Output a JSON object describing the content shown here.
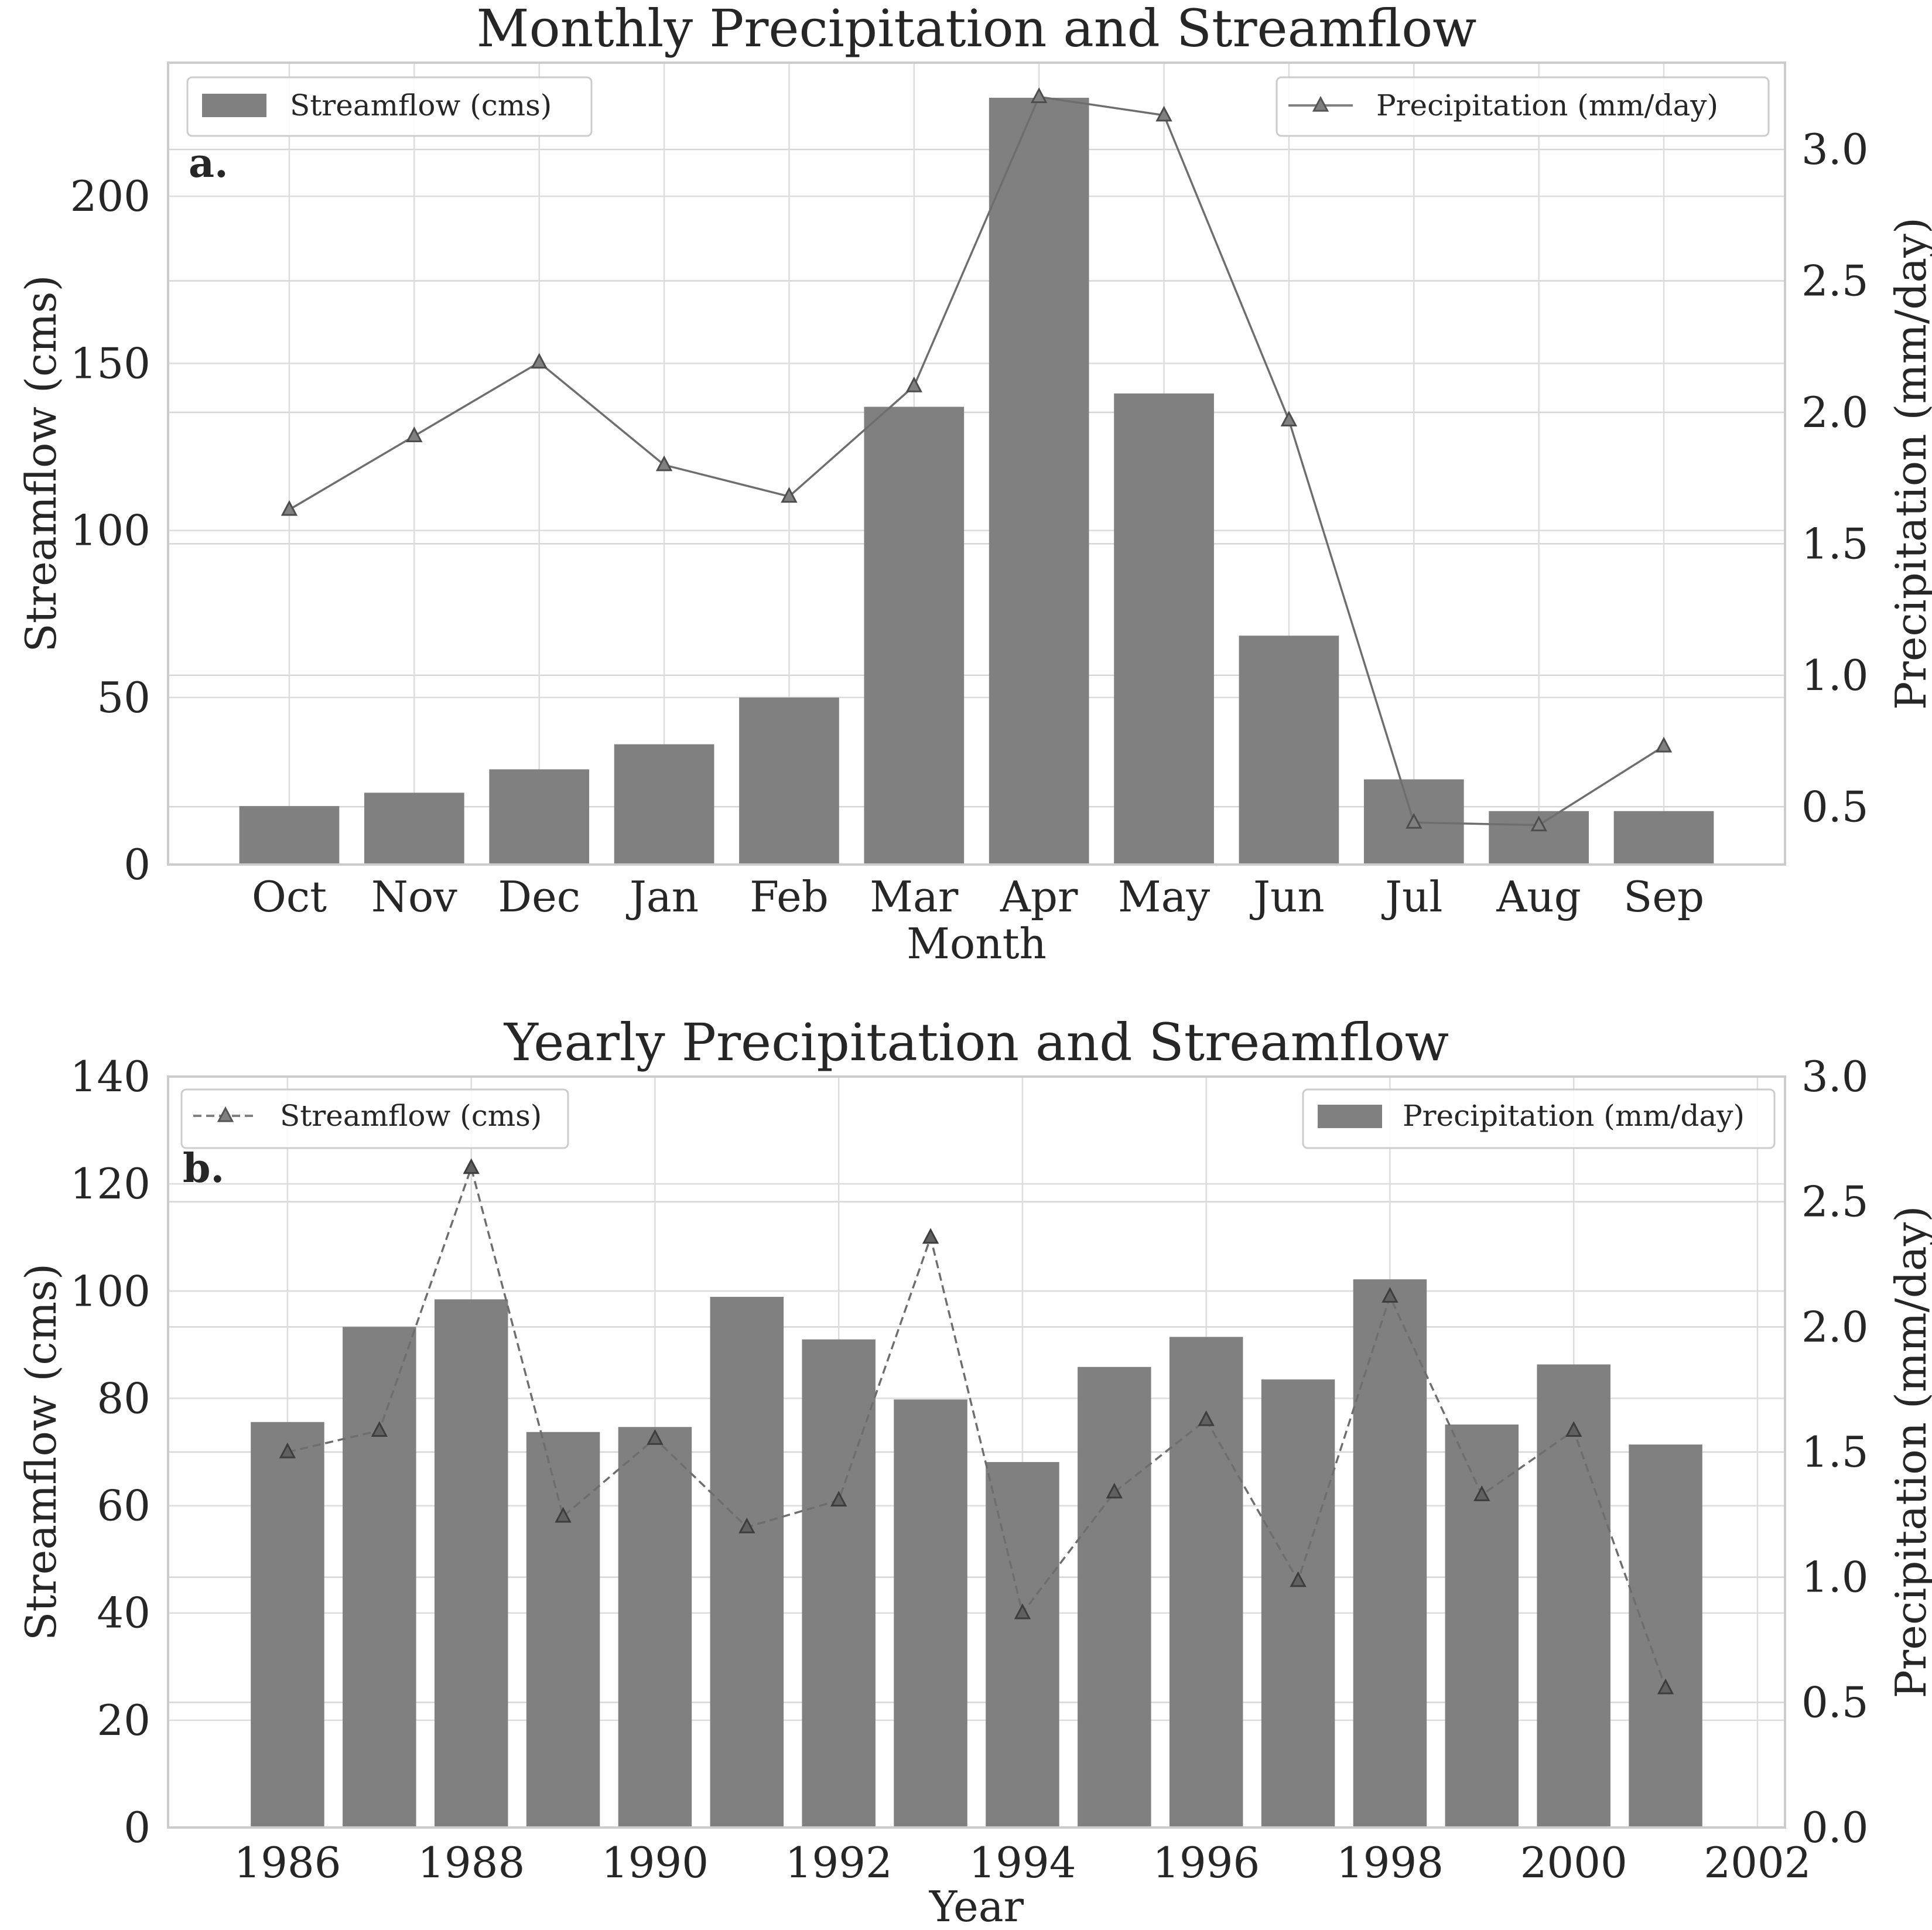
{
  "chart_data": [
    {
      "id": "a",
      "type": "bar",
      "panel_label": "a.",
      "title": "Monthly Precipitation and Streamflow",
      "xlabel": "Month",
      "ylabel": "Streamflow (cms)",
      "y2label": "Precipitation (mm/day)",
      "categories": [
        "Oct",
        "Nov",
        "Dec",
        "Jan",
        "Feb",
        "Mar",
        "Apr",
        "May",
        "Jun",
        "Jul",
        "Aug",
        "Sep"
      ],
      "ylim": [
        0,
        240
      ],
      "yticks": [
        0,
        50,
        100,
        150,
        200
      ],
      "y2lim": [
        0.28,
        3.33
      ],
      "y2ticks": [
        0.5,
        1.0,
        1.5,
        2.0,
        2.5,
        3.0
      ],
      "y2tick_decimals": 1,
      "series": [
        {
          "name": "Streamflow (cms)",
          "kind": "bar",
          "axis": "left",
          "color": "#808080",
          "values": [
            17.5,
            21.5,
            28.5,
            36,
            50,
            137,
            229.5,
            141,
            68.5,
            25.5,
            16,
            16
          ]
        },
        {
          "name": "Precipitation (mm/day)",
          "kind": "line",
          "axis": "right",
          "color": "#808080",
          "marker": "triangle",
          "dashed": false,
          "values": [
            1.63,
            1.91,
            2.19,
            1.8,
            1.68,
            2.1,
            3.2,
            3.13,
            1.97,
            0.44,
            0.43,
            0.73
          ]
        }
      ],
      "legend_left": [
        "Streamflow (cms)"
      ],
      "legend_right": [
        "Precipitation (mm/day)"
      ]
    },
    {
      "id": "b",
      "type": "bar",
      "panel_label": "b.",
      "title": "Yearly Precipitation and Streamflow",
      "xlabel": "Year",
      "ylabel": "Streamflow (cms)",
      "y2label": "Precipitation (mm/day)",
      "x": [
        1986,
        1987,
        1988,
        1989,
        1990,
        1991,
        1992,
        1993,
        1994,
        1995,
        1996,
        1997,
        1998,
        1999,
        2000,
        2001
      ],
      "xlim": [
        1984.7,
        2002.3
      ],
      "xticks": [
        1986,
        1988,
        1990,
        1992,
        1994,
        1996,
        1998,
        2000,
        2002
      ],
      "ylim": [
        0,
        140
      ],
      "yticks": [
        0,
        20,
        40,
        60,
        80,
        100,
        120,
        140
      ],
      "y2lim": [
        0,
        3.0
      ],
      "y2ticks": [
        0.0,
        0.5,
        1.0,
        1.5,
        2.0,
        2.5,
        3.0
      ],
      "y2tick_decimals": 1,
      "series": [
        {
          "name": "Precipitation (mm/day)",
          "kind": "bar",
          "axis": "right",
          "color": "#808080",
          "values": [
            1.62,
            2.0,
            2.11,
            1.58,
            1.6,
            2.12,
            1.95,
            1.71,
            1.46,
            1.84,
            1.96,
            1.79,
            2.19,
            1.61,
            1.85,
            1.53
          ]
        },
        {
          "name": "Streamflow (cms)",
          "kind": "line",
          "axis": "left",
          "color": "#808080",
          "marker": "triangle",
          "dashed": true,
          "values": [
            70,
            74,
            123,
            58,
            72.5,
            56,
            61,
            110,
            40,
            62.5,
            76,
            46,
            99,
            62,
            74,
            26
          ]
        }
      ],
      "legend_left": [
        "Streamflow (cms)"
      ],
      "legend_right": [
        "Precipitation (mm/day)"
      ]
    }
  ]
}
